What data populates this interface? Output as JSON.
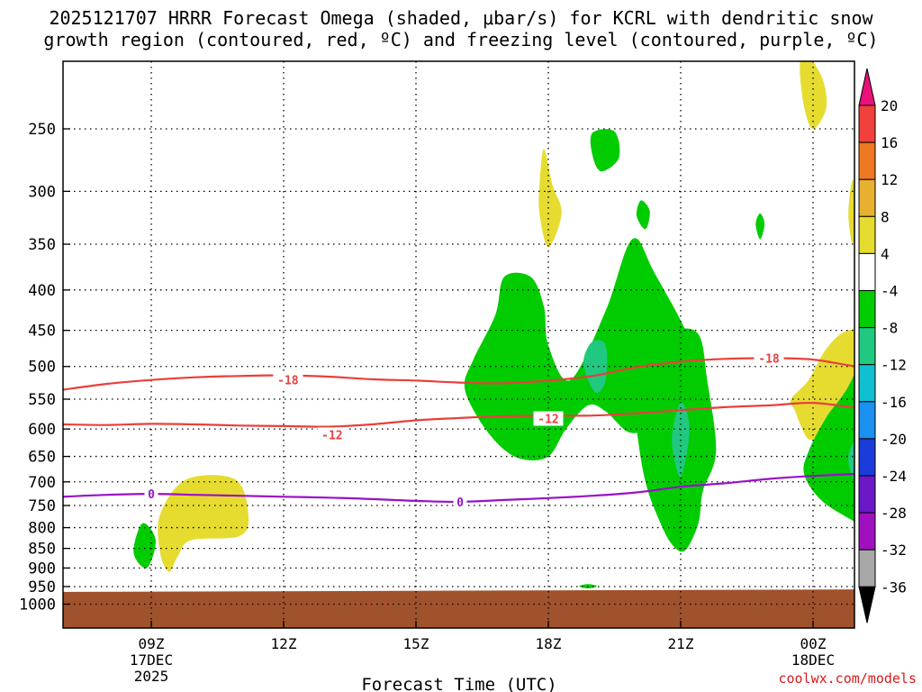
{
  "title": {
    "line1": "2025121707 HRRR Forecast Omega (shaded, μbar/s) for KCRL with dendritic snow",
    "line2": "growth region (contoured, red, ºC) and freezing level (contoured, purple, ºC)"
  },
  "credit": "coolwx.com/models",
  "chart_data": {
    "type": "time-height cross section",
    "title": "2025121707 HRRR Forecast Omega (shaded, μbar/s) for KCRL with dendritic snow growth region (contoured, red, ºC) and freezing level (contoured, purple, ºC)",
    "xlabel": "Forecast Time (UTC)",
    "ylabel": "",
    "x_range_hours_utc": [
      7,
      25
    ],
    "y_range_hpa": [
      200,
      1030
    ],
    "y_scale": "log",
    "grid": "dotted horizontal lines at pressure levels",
    "x_ticks": [
      {
        "x": 9,
        "label": "09Z",
        "sub": [
          "17DEC",
          "2025"
        ]
      },
      {
        "x": 12,
        "label": "12Z",
        "sub": []
      },
      {
        "x": 15,
        "label": "15Z",
        "sub": []
      },
      {
        "x": 18,
        "label": "18Z",
        "sub": []
      },
      {
        "x": 21,
        "label": "21Z",
        "sub": []
      },
      {
        "x": 24,
        "label": "00Z",
        "sub": [
          "18DEC"
        ]
      }
    ],
    "y_ticks": [
      {
        "p": 250,
        "label": "250"
      },
      {
        "p": 300,
        "label": "300"
      },
      {
        "p": 350,
        "label": "350"
      },
      {
        "p": 400,
        "label": "400"
      },
      {
        "p": 450,
        "label": "450"
      },
      {
        "p": 500,
        "label": "500"
      },
      {
        "p": 550,
        "label": "550"
      },
      {
        "p": 600,
        "label": "600"
      },
      {
        "p": 650,
        "label": "650"
      },
      {
        "p": 700,
        "label": "700"
      },
      {
        "p": 750,
        "label": "750"
      },
      {
        "p": 800,
        "label": "800"
      },
      {
        "p": 850,
        "label": "850"
      },
      {
        "p": 900,
        "label": "900"
      },
      {
        "p": 950,
        "label": "950"
      },
      {
        "p": 1000,
        "label": "1000"
      }
    ],
    "colorbar": {
      "bins": [
        {
          "lo": 20,
          "hi": null,
          "color": "#e8117a"
        },
        {
          "lo": 16,
          "hi": 20,
          "color": "#f2403c"
        },
        {
          "lo": 12,
          "hi": 16,
          "color": "#f07820"
        },
        {
          "lo": 8,
          "hi": 12,
          "color": "#e8b030"
        },
        {
          "lo": 4,
          "hi": 8,
          "color": "#e6dc30"
        },
        {
          "lo": -4,
          "hi": 4,
          "color": "#ffffff"
        },
        {
          "lo": -8,
          "hi": -4,
          "color": "#00cc00"
        },
        {
          "lo": -12,
          "hi": -8,
          "color": "#20c880"
        },
        {
          "lo": -16,
          "hi": -12,
          "color": "#10c0d0"
        },
        {
          "lo": -20,
          "hi": -16,
          "color": "#1a90f0"
        },
        {
          "lo": -24,
          "hi": -20,
          "color": "#1a3cd8"
        },
        {
          "lo": -28,
          "hi": -24,
          "color": "#6a18c8"
        },
        {
          "lo": -32,
          "hi": -28,
          "color": "#a010c0"
        },
        {
          "lo": -36,
          "hi": -32,
          "color": "#a8a8a8"
        },
        {
          "lo": null,
          "hi": -36,
          "color": "#000000"
        }
      ],
      "tick_labels": [
        "20",
        "16",
        "12",
        "8",
        "4",
        "-4",
        "-8",
        "-12",
        "-16",
        "-20",
        "-24",
        "-28",
        "-32",
        "-36"
      ]
    },
    "omega_regions": [
      {
        "value_bin": "4 to 8",
        "color": "#e6dc30",
        "points": [
          [
            23.8,
            200
          ],
          [
            24.2,
            215
          ],
          [
            24.3,
            235
          ],
          [
            24.0,
            250
          ],
          [
            23.8,
            235
          ],
          [
            23.7,
            210
          ]
        ]
      },
      {
        "value_bin": "4 to 8",
        "color": "#e6dc30",
        "points": [
          [
            17.9,
            265
          ],
          [
            18.1,
            295
          ],
          [
            18.3,
            320
          ],
          [
            18.0,
            353
          ],
          [
            17.8,
            320
          ],
          [
            17.8,
            295
          ]
        ]
      },
      {
        "value_bin": "4 to 8",
        "color": "#e6dc30",
        "points": [
          [
            24.9,
            290
          ],
          [
            25.0,
            320
          ],
          [
            24.9,
            350
          ],
          [
            24.8,
            320
          ]
        ]
      },
      {
        "value_bin": "4 to 8",
        "color": "#e6dc30",
        "points": [
          [
            23.5,
            550
          ],
          [
            23.9,
            520
          ],
          [
            24.3,
            475
          ],
          [
            24.8,
            450
          ],
          [
            25.7,
            450
          ],
          [
            25.9,
            470
          ],
          [
            25.7,
            500
          ],
          [
            25.2,
            530
          ],
          [
            24.6,
            555
          ],
          [
            24.4,
            580
          ],
          [
            24.2,
            610
          ],
          [
            23.9,
            618
          ],
          [
            23.7,
            590
          ],
          [
            23.6,
            570
          ]
        ]
      },
      {
        "value_bin": "4 to 8",
        "color": "#e6dc30",
        "points": [
          [
            9.8,
            695
          ],
          [
            10.9,
            695
          ],
          [
            11.2,
            770
          ],
          [
            11.0,
            820
          ],
          [
            9.9,
            830
          ],
          [
            9.6,
            870
          ],
          [
            9.4,
            910
          ],
          [
            9.2,
            860
          ],
          [
            9.2,
            770
          ]
        ]
      },
      {
        "value_bin": "-4 to -8",
        "color": "#00cc00",
        "points": [
          [
            8.8,
            790
          ],
          [
            9.1,
            830
          ],
          [
            8.9,
            900
          ],
          [
            8.6,
            860
          ]
        ]
      },
      {
        "value_bin": "-4 to -8",
        "color": "#00cc00",
        "points": [
          [
            19.0,
            253
          ],
          [
            19.5,
            252
          ],
          [
            19.6,
            272
          ],
          [
            19.2,
            283
          ],
          [
            19.0,
            270
          ]
        ]
      },
      {
        "value_bin": "-4 to -8",
        "color": "#00cc00",
        "points": [
          [
            20.1,
            308
          ],
          [
            20.3,
            318
          ],
          [
            20.2,
            335
          ],
          [
            20.0,
            322
          ]
        ]
      },
      {
        "value_bin": "-4 to -8",
        "color": "#00cc00",
        "points": [
          [
            22.8,
            320
          ],
          [
            22.9,
            330
          ],
          [
            22.8,
            345
          ],
          [
            22.7,
            330
          ]
        ]
      },
      {
        "value_bin": "-4 to -8",
        "color": "#00cc00",
        "points": [
          [
            17.0,
            385
          ],
          [
            17.6,
            385
          ],
          [
            17.9,
            420
          ],
          [
            18.0,
            470
          ],
          [
            18.5,
            520
          ],
          [
            19.3,
            425
          ],
          [
            19.9,
            345
          ],
          [
            20.4,
            380
          ],
          [
            21.3,
            480
          ],
          [
            21.0,
            540
          ],
          [
            20.6,
            570
          ],
          [
            20.2,
            600
          ],
          [
            19.8,
            605
          ],
          [
            19.3,
            570
          ],
          [
            18.9,
            560
          ],
          [
            18.4,
            600
          ],
          [
            18.0,
            650
          ],
          [
            17.4,
            655
          ],
          [
            16.9,
            630
          ],
          [
            16.4,
            580
          ],
          [
            16.1,
            530
          ],
          [
            16.3,
            490
          ],
          [
            16.8,
            430
          ]
        ]
      },
      {
        "value_bin": "-4 to -8",
        "color": "#00cc00",
        "points": [
          [
            20.1,
            470
          ],
          [
            20.8,
            450
          ],
          [
            21.4,
            455
          ],
          [
            21.6,
            520
          ],
          [
            21.8,
            640
          ],
          [
            21.5,
            720
          ],
          [
            21.4,
            790
          ],
          [
            21.1,
            855
          ],
          [
            20.8,
            840
          ],
          [
            20.5,
            780
          ],
          [
            20.2,
            700
          ],
          [
            20.0,
            600
          ],
          [
            19.9,
            520
          ]
        ]
      },
      {
        "value_bin": "-4 to -8",
        "color": "#00cc00",
        "points": [
          [
            25.4,
            450
          ],
          [
            25.6,
            450
          ],
          [
            25.6,
            830
          ],
          [
            25.0,
            790
          ],
          [
            24.2,
            740
          ],
          [
            23.8,
            685
          ],
          [
            23.9,
            640
          ],
          [
            24.3,
            580
          ],
          [
            24.8,
            530
          ]
        ]
      },
      {
        "value_bin": "-4 to -8",
        "color": "#00cc00",
        "points": [
          [
            18.9,
            943
          ],
          [
            19.1,
            949
          ],
          [
            18.9,
            955
          ],
          [
            18.7,
            949
          ]
        ]
      },
      {
        "value_bin": "-8 to -12",
        "color": "#20c880",
        "points": [
          [
            19.0,
            465
          ],
          [
            19.3,
            470
          ],
          [
            19.3,
            520
          ],
          [
            19.1,
            540
          ],
          [
            18.9,
            520
          ],
          [
            18.8,
            490
          ]
        ]
      },
      {
        "value_bin": "-8 to -12",
        "color": "#20c880",
        "points": [
          [
            21.0,
            555
          ],
          [
            21.2,
            600
          ],
          [
            21.0,
            690
          ],
          [
            20.8,
            620
          ]
        ]
      },
      {
        "value_bin": "-8 to -12",
        "color": "#20c880",
        "points": [
          [
            25.6,
            540
          ],
          [
            25.6,
            790
          ],
          [
            25.0,
            710
          ],
          [
            24.8,
            650
          ],
          [
            25.1,
            600
          ]
        ]
      }
    ],
    "contours": [
      {
        "name": "-18",
        "color": "#e8403c",
        "label": "-18",
        "label_at": [
          12.1,
          520
        ],
        "label_at2": [
          23.0,
          488
        ],
        "points": [
          [
            7.0,
            535
          ],
          [
            8,
            526
          ],
          [
            9,
            520
          ],
          [
            10,
            516
          ],
          [
            11,
            514
          ],
          [
            12,
            513
          ],
          [
            13,
            515
          ],
          [
            14,
            519
          ],
          [
            15,
            521
          ],
          [
            16,
            524
          ],
          [
            17,
            525
          ],
          [
            18,
            521
          ],
          [
            19,
            514
          ],
          [
            20,
            501
          ],
          [
            21,
            493
          ],
          [
            22,
            489
          ],
          [
            23,
            488
          ],
          [
            24,
            490
          ],
          [
            25,
            500
          ],
          [
            25.9,
            503
          ]
        ]
      },
      {
        "name": "-12",
        "color": "#e8403c",
        "label": "-12",
        "label_at": [
          13.1,
          610
        ],
        "label_at2": [
          18.0,
          582
        ],
        "points": [
          [
            7.0,
            592
          ],
          [
            8,
            593
          ],
          [
            9,
            591
          ],
          [
            10,
            592
          ],
          [
            11,
            594
          ],
          [
            12,
            595
          ],
          [
            13,
            596
          ],
          [
            14,
            592
          ],
          [
            15,
            585
          ],
          [
            16,
            581
          ],
          [
            17,
            578
          ],
          [
            18,
            577
          ],
          [
            19,
            577
          ],
          [
            20,
            573
          ],
          [
            21,
            568
          ],
          [
            22,
            563
          ],
          [
            23,
            560
          ],
          [
            24,
            556
          ],
          [
            25,
            564
          ],
          [
            25.9,
            570
          ]
        ]
      },
      {
        "name": "0",
        "color": "#9a10c8",
        "label": "0",
        "label_at": [
          9.0,
          725
        ],
        "label_at2": [
          16.0,
          742
        ],
        "points": [
          [
            7.0,
            731
          ],
          [
            8,
            727
          ],
          [
            9,
            725
          ],
          [
            10,
            727
          ],
          [
            11,
            729
          ],
          [
            12,
            731
          ],
          [
            13,
            733
          ],
          [
            14,
            736
          ],
          [
            15,
            740
          ],
          [
            16,
            742
          ],
          [
            17,
            738
          ],
          [
            18,
            734
          ],
          [
            19,
            729
          ],
          [
            20,
            722
          ],
          [
            21,
            710
          ],
          [
            22,
            703
          ],
          [
            23,
            694
          ],
          [
            24,
            688
          ],
          [
            25,
            684
          ],
          [
            25.9,
            682
          ]
        ]
      }
    ],
    "ground": {
      "color": "#a0522d",
      "pressure_left": 965,
      "pressure_right": 958
    }
  }
}
